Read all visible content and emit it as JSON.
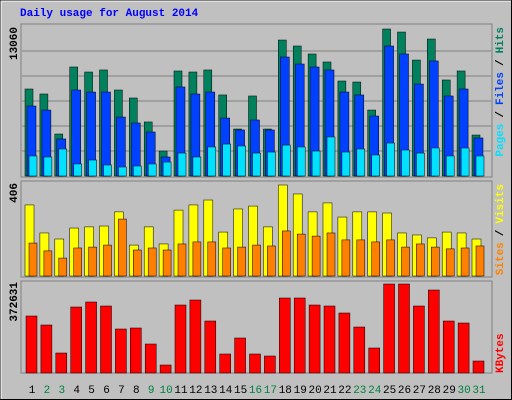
{
  "chart_data": [
    {
      "type": "bar",
      "title": "Daily usage for August 2014",
      "ylim": [
        0,
        13060
      ],
      "legend_separator": "/",
      "series": [
        {
          "name": "Pages",
          "color": "#00e0ff",
          "values": [
            1780,
            1690,
            2400,
            1070,
            1420,
            980,
            800,
            890,
            1070,
            1240,
            2040,
            1690,
            2580,
            2840,
            2670,
            2040,
            2130,
            2750,
            2580,
            2220,
            3470,
            2130,
            2400,
            1870,
            2930,
            2310,
            2040,
            2490,
            1780,
            2490,
            1780
          ]
        },
        {
          "name": "Files",
          "color": "#0040ff",
          "values": [
            6220,
            5860,
            3290,
            7640,
            7460,
            7460,
            5240,
            4710,
            3910,
            1690,
            7910,
            7285,
            7460,
            5150,
            4090,
            4975,
            4090,
            10570,
            9950,
            9685,
            9420,
            7460,
            7200,
            5330,
            11550,
            10840,
            8170,
            10220,
            7110,
            7730,
            3380
          ]
        },
        {
          "name": "Hits",
          "color": "#00805c",
          "values": [
            7730,
            7285,
            3730,
            9685,
            9240,
            9420,
            7640,
            6930,
            4800,
            2220,
            9330,
            9240,
            9420,
            7200,
            4175,
            7110,
            4175,
            12080,
            11550,
            10840,
            10130,
            8440,
            8350,
            5860,
            13060,
            12790,
            10300,
            12170,
            8530,
            9330,
            3640
          ]
        }
      ]
    },
    {
      "type": "bar",
      "ylim": [
        0,
        406
      ],
      "legend_separator": "/",
      "series": [
        {
          "name": "Sites",
          "color": "#ff8000",
          "values": [
            147,
            112,
            80,
            125,
            129,
            138,
            254,
            116,
            125,
            116,
            143,
            152,
            152,
            125,
            129,
            138,
            134,
            201,
            187,
            178,
            192,
            161,
            161,
            152,
            161,
            129,
            143,
            129,
            121,
            125,
            134
          ]
        },
        {
          "name": "Visits",
          "color": "#ffff00",
          "values": [
            317,
            192,
            165,
            214,
            219,
            223,
            286,
            138,
            219,
            143,
            294,
            317,
            339,
            196,
            299,
            312,
            219,
            406,
            366,
            286,
            326,
            263,
            286,
            286,
            281,
            192,
            183,
            170,
            196,
            192,
            165
          ]
        }
      ]
    },
    {
      "type": "bar",
      "ylim": [
        0,
        372631
      ],
      "categories": [
        "1",
        "2",
        "3",
        "4",
        "5",
        "6",
        "7",
        "8",
        "9",
        "10",
        "11",
        "12",
        "13",
        "14",
        "15",
        "16",
        "17",
        "18",
        "19",
        "20",
        "21",
        "22",
        "23",
        "24",
        "25",
        "26",
        "27",
        "28",
        "29",
        "30",
        "31"
      ],
      "category_colors": [
        "#000000",
        "#008040",
        "#008040",
        "#000000",
        "#000000",
        "#000000",
        "#000000",
        "#000000",
        "#008040",
        "#008040",
        "#000000",
        "#000000",
        "#000000",
        "#000000",
        "#000000",
        "#008040",
        "#008040",
        "#000000",
        "#000000",
        "#000000",
        "#000000",
        "#000000",
        "#008040",
        "#008040",
        "#000000",
        "#000000",
        "#000000",
        "#000000",
        "#000000",
        "#008040",
        "#008040"
      ],
      "series": [
        {
          "name": "KBytes",
          "color": "#ff0000",
          "values": [
            238650,
            200970,
            83740,
            276330,
            297260,
            280520,
            184220,
            188400,
            121420,
            33490,
            284700,
            305640,
            217710,
            79550,
            146540,
            79550,
            71180,
            314010,
            314010,
            284700,
            280520,
            251210,
            192590,
            104670,
            372631,
            372631,
            280520,
            347510,
            217710,
            209340,
            50240
          ]
        }
      ]
    }
  ]
}
